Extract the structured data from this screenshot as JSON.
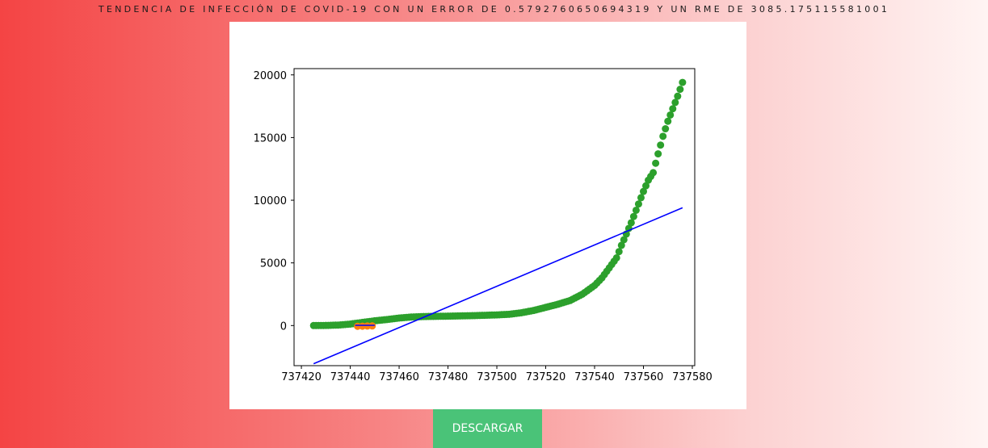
{
  "page": {
    "title": "TENDENCIA DE INFECCIÓN DE COVID-19 CON UN ERROR DE 0.5792760650694319 Y UN RME DE 3085.175115581001",
    "download_label": "DESCARGAR"
  },
  "colors": {
    "points": "#2ca02c",
    "small_points": "#ff7f0e",
    "trend_line": "#0000ff",
    "button": "#4ac378"
  },
  "chart_data": {
    "type": "scatter",
    "title": "",
    "xlabel": "",
    "ylabel": "",
    "xlim": [
      737417,
      737581
    ],
    "ylim": [
      -3200,
      20500
    ],
    "x_ticks": [
      737420,
      737440,
      737460,
      737480,
      737500,
      737520,
      737540,
      737560,
      737580
    ],
    "x_tick_labels": [
      "737420",
      "737440",
      "737460",
      "737480",
      "737500",
      "737520",
      "737540",
      "737560",
      "737580"
    ],
    "y_ticks": [
      0,
      5000,
      10000,
      15000,
      20000
    ],
    "y_tick_labels": [
      "0",
      "5000",
      "10000",
      "15000",
      "20000"
    ],
    "grid": false,
    "legend": "none",
    "series": [
      {
        "kind": "scatter",
        "color": "#2ca02c",
        "anchors": [
          [
            737425,
            0
          ],
          [
            737430,
            10
          ],
          [
            737435,
            40
          ],
          [
            737440,
            120
          ],
          [
            737445,
            250
          ],
          [
            737450,
            380
          ],
          [
            737455,
            480
          ],
          [
            737460,
            600
          ],
          [
            737465,
            680
          ],
          [
            737470,
            720
          ],
          [
            737480,
            750
          ],
          [
            737490,
            790
          ],
          [
            737500,
            850
          ],
          [
            737505,
            900
          ],
          [
            737510,
            1020
          ],
          [
            737515,
            1200
          ],
          [
            737520,
            1450
          ],
          [
            737525,
            1700
          ],
          [
            737530,
            2000
          ],
          [
            737535,
            2500
          ],
          [
            737540,
            3200
          ],
          [
            737543,
            3800
          ],
          [
            737546,
            4600
          ],
          [
            737549,
            5400
          ],
          [
            737551,
            6400
          ],
          [
            737553,
            7300
          ],
          [
            737555,
            8200
          ],
          [
            737558,
            9700
          ],
          [
            737560,
            10700
          ],
          [
            737562,
            11600
          ],
          [
            737564,
            12200
          ],
          [
            737566,
            13700
          ],
          [
            737568,
            15100
          ],
          [
            737570,
            16300
          ],
          [
            737572,
            17300
          ],
          [
            737574,
            18300
          ],
          [
            737576,
            19400
          ]
        ]
      },
      {
        "kind": "scatter",
        "color": "#ff7f0e",
        "points": [
          [
            737443,
            -60
          ],
          [
            737445,
            -50
          ],
          [
            737447,
            -40
          ],
          [
            737449,
            -30
          ]
        ]
      },
      {
        "kind": "line",
        "color": "#0000ff",
        "points": [
          [
            737425,
            -3050
          ],
          [
            737576,
            9400
          ]
        ]
      },
      {
        "kind": "line",
        "color": "#0000ff",
        "points": [
          [
            737442,
            20
          ],
          [
            737450,
            20
          ]
        ]
      }
    ]
  }
}
